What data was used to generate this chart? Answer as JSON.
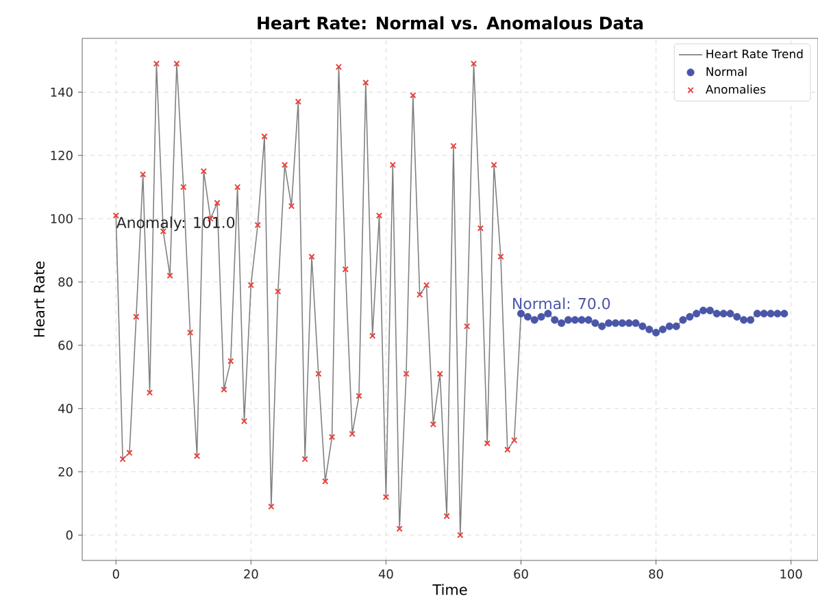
{
  "chart_data": {
    "type": "line",
    "title": "Heart Rate: Normal vs. Anomalous Data",
    "xlabel": "Time",
    "ylabel": "Heart Rate",
    "xlim": [
      -5,
      104
    ],
    "ylim": [
      -8,
      157
    ],
    "xticks": [
      0,
      20,
      40,
      60,
      80,
      100
    ],
    "yticks": [
      0,
      20,
      40,
      60,
      80,
      100,
      120,
      140
    ],
    "grid": true,
    "legend": "top right",
    "series": [
      {
        "name": "Heart Rate Trend",
        "type": "line",
        "color": "#808080",
        "marker": "none",
        "x": [
          0,
          1,
          2,
          3,
          4,
          5,
          6,
          7,
          8,
          9,
          10,
          11,
          12,
          13,
          14,
          15,
          16,
          17,
          18,
          19,
          20,
          21,
          22,
          23,
          24,
          25,
          26,
          27,
          28,
          29,
          30,
          31,
          32,
          33,
          34,
          35,
          36,
          37,
          38,
          39,
          40,
          41,
          42,
          43,
          44,
          45,
          46,
          47,
          48,
          49,
          50,
          51,
          52,
          53,
          54,
          55,
          56,
          57,
          58,
          59,
          60,
          61,
          62,
          63,
          64,
          65,
          66,
          67,
          68,
          69,
          70,
          71,
          72,
          73,
          74,
          75,
          76,
          77,
          78,
          79,
          80,
          81,
          82,
          83,
          84,
          85,
          86,
          87,
          88,
          89,
          90,
          91,
          92,
          93,
          94,
          95,
          96,
          97,
          98,
          99
        ],
        "values": [
          101,
          24,
          26,
          69,
          114,
          45,
          149,
          96,
          82,
          149,
          110,
          64,
          25,
          115,
          100,
          105,
          46,
          55,
          110,
          36,
          79,
          98,
          126,
          9,
          77,
          117,
          104,
          137,
          24,
          88,
          51,
          17,
          31,
          148,
          84,
          32,
          44,
          143,
          63,
          101,
          12,
          117,
          2,
          51,
          139,
          76,
          79,
          35,
          51,
          6,
          123,
          0,
          66,
          149,
          97,
          29,
          117,
          88,
          27,
          30,
          70,
          69,
          68,
          69,
          70,
          68,
          67,
          68,
          68,
          68,
          68,
          67,
          66,
          67,
          67,
          67,
          67,
          67,
          66,
          65,
          64,
          65,
          66,
          66,
          68,
          69,
          70,
          71,
          71,
          70,
          70,
          70,
          69,
          68,
          68,
          70,
          70,
          70,
          70,
          70
        ]
      },
      {
        "name": "Normal",
        "type": "scatter",
        "color": "#4a56a8",
        "marker": "circle",
        "x": [
          60,
          61,
          62,
          63,
          64,
          65,
          66,
          67,
          68,
          69,
          70,
          71,
          72,
          73,
          74,
          75,
          76,
          77,
          78,
          79,
          80,
          81,
          82,
          83,
          84,
          85,
          86,
          87,
          88,
          89,
          90,
          91,
          92,
          93,
          94,
          95,
          96,
          97,
          98,
          99
        ],
        "values": [
          70,
          69,
          68,
          69,
          70,
          68,
          67,
          68,
          68,
          68,
          68,
          67,
          66,
          67,
          67,
          67,
          67,
          67,
          66,
          65,
          64,
          65,
          66,
          66,
          68,
          69,
          70,
          71,
          71,
          70,
          70,
          70,
          69,
          68,
          68,
          70,
          70,
          70,
          70,
          70
        ]
      },
      {
        "name": "Anomalies",
        "type": "scatter",
        "color": "#e8413c",
        "marker": "cross",
        "x": [
          0,
          1,
          2,
          3,
          4,
          5,
          6,
          7,
          8,
          9,
          10,
          11,
          12,
          13,
          14,
          15,
          16,
          17,
          18,
          19,
          20,
          21,
          22,
          23,
          24,
          25,
          26,
          27,
          28,
          29,
          30,
          31,
          32,
          33,
          34,
          35,
          36,
          37,
          38,
          39,
          40,
          41,
          42,
          43,
          44,
          45,
          46,
          47,
          48,
          49,
          50,
          51,
          52,
          53,
          54,
          55,
          56,
          57,
          58,
          59
        ],
        "values": [
          101,
          24,
          26,
          69,
          114,
          45,
          149,
          96,
          82,
          149,
          110,
          64,
          25,
          115,
          100,
          105,
          46,
          55,
          110,
          36,
          79,
          98,
          126,
          9,
          77,
          117,
          104,
          137,
          24,
          88,
          51,
          17,
          31,
          148,
          84,
          32,
          44,
          143,
          63,
          101,
          12,
          117,
          2,
          51,
          139,
          76,
          79,
          35,
          51,
          6,
          123,
          0,
          66,
          149,
          97,
          29,
          117,
          88,
          27,
          30
        ]
      }
    ],
    "annotations": [
      {
        "text": "Anomaly: 101.0",
        "x": 0,
        "y": 101
      },
      {
        "text": "Normal: 70.0",
        "x": 60,
        "y": 70
      }
    ]
  }
}
